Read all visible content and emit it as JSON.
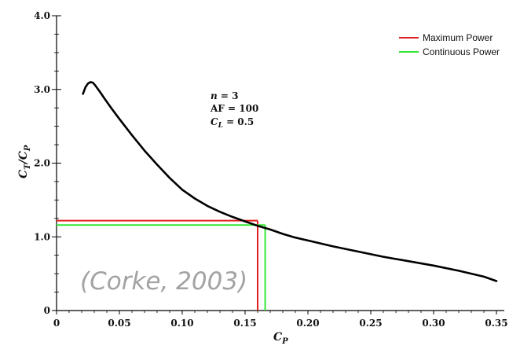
{
  "chart_data": {
    "type": "line",
    "xlabel": "C_P",
    "ylabel": "C_T/C_P",
    "xlim": [
      0,
      0.35
    ],
    "ylim": [
      0,
      4.0
    ],
    "x_ticks": [
      "0",
      "0.05",
      "0.10",
      "0.15",
      "0.20",
      "0.25",
      "0.30",
      "0.35"
    ],
    "y_ticks": [
      "0",
      "1.0",
      "2.0",
      "3.0",
      "4.0"
    ],
    "grid": false,
    "legend_position": "top-right",
    "series": [
      {
        "name": "",
        "color": "#000000",
        "x": [
          0.021,
          0.023,
          0.025,
          0.027,
          0.029,
          0.031,
          0.034,
          0.038,
          0.043,
          0.05,
          0.06,
          0.07,
          0.08,
          0.09,
          0.1,
          0.11,
          0.12,
          0.13,
          0.14,
          0.15,
          0.16,
          0.17,
          0.18,
          0.19,
          0.2,
          0.22,
          0.24,
          0.26,
          0.28,
          0.3,
          0.32,
          0.34,
          0.35
        ],
        "y": [
          2.94,
          3.03,
          3.08,
          3.1,
          3.09,
          3.05,
          2.98,
          2.88,
          2.76,
          2.6,
          2.38,
          2.17,
          1.98,
          1.8,
          1.64,
          1.52,
          1.42,
          1.34,
          1.27,
          1.21,
          1.15,
          1.1,
          1.04,
          0.99,
          0.95,
          0.87,
          0.8,
          0.73,
          0.67,
          0.61,
          0.54,
          0.46,
          0.4
        ]
      }
    ],
    "reference_lines": [
      {
        "name": "Maximum Power",
        "color": "#e02020",
        "x": 0.16,
        "y": 1.22
      },
      {
        "name": "Continuous Power",
        "color": "#33e633",
        "x": 0.166,
        "y": 1.16
      }
    ],
    "annotations": [
      "n = 3",
      "AF = 100",
      "C_L = 0.5"
    ]
  },
  "legend": [
    {
      "label": "Maximum Power",
      "color": "#e02020"
    },
    {
      "label": "Continuous Power",
      "color": "#33e633"
    }
  ],
  "axis_text": {
    "x_main": "C",
    "x_sub": "P",
    "y_main1": "C",
    "y_sub1": "T",
    "y_mid": "/C",
    "y_sub2": "P"
  },
  "annotation_text": {
    "n_var": "n",
    "n_value": " = 3",
    "af": "AF = 100",
    "cl_main": "C",
    "cl_sub": "L",
    "cl_value": " = 0.5"
  },
  "watermark": "(Corke, 2003)"
}
